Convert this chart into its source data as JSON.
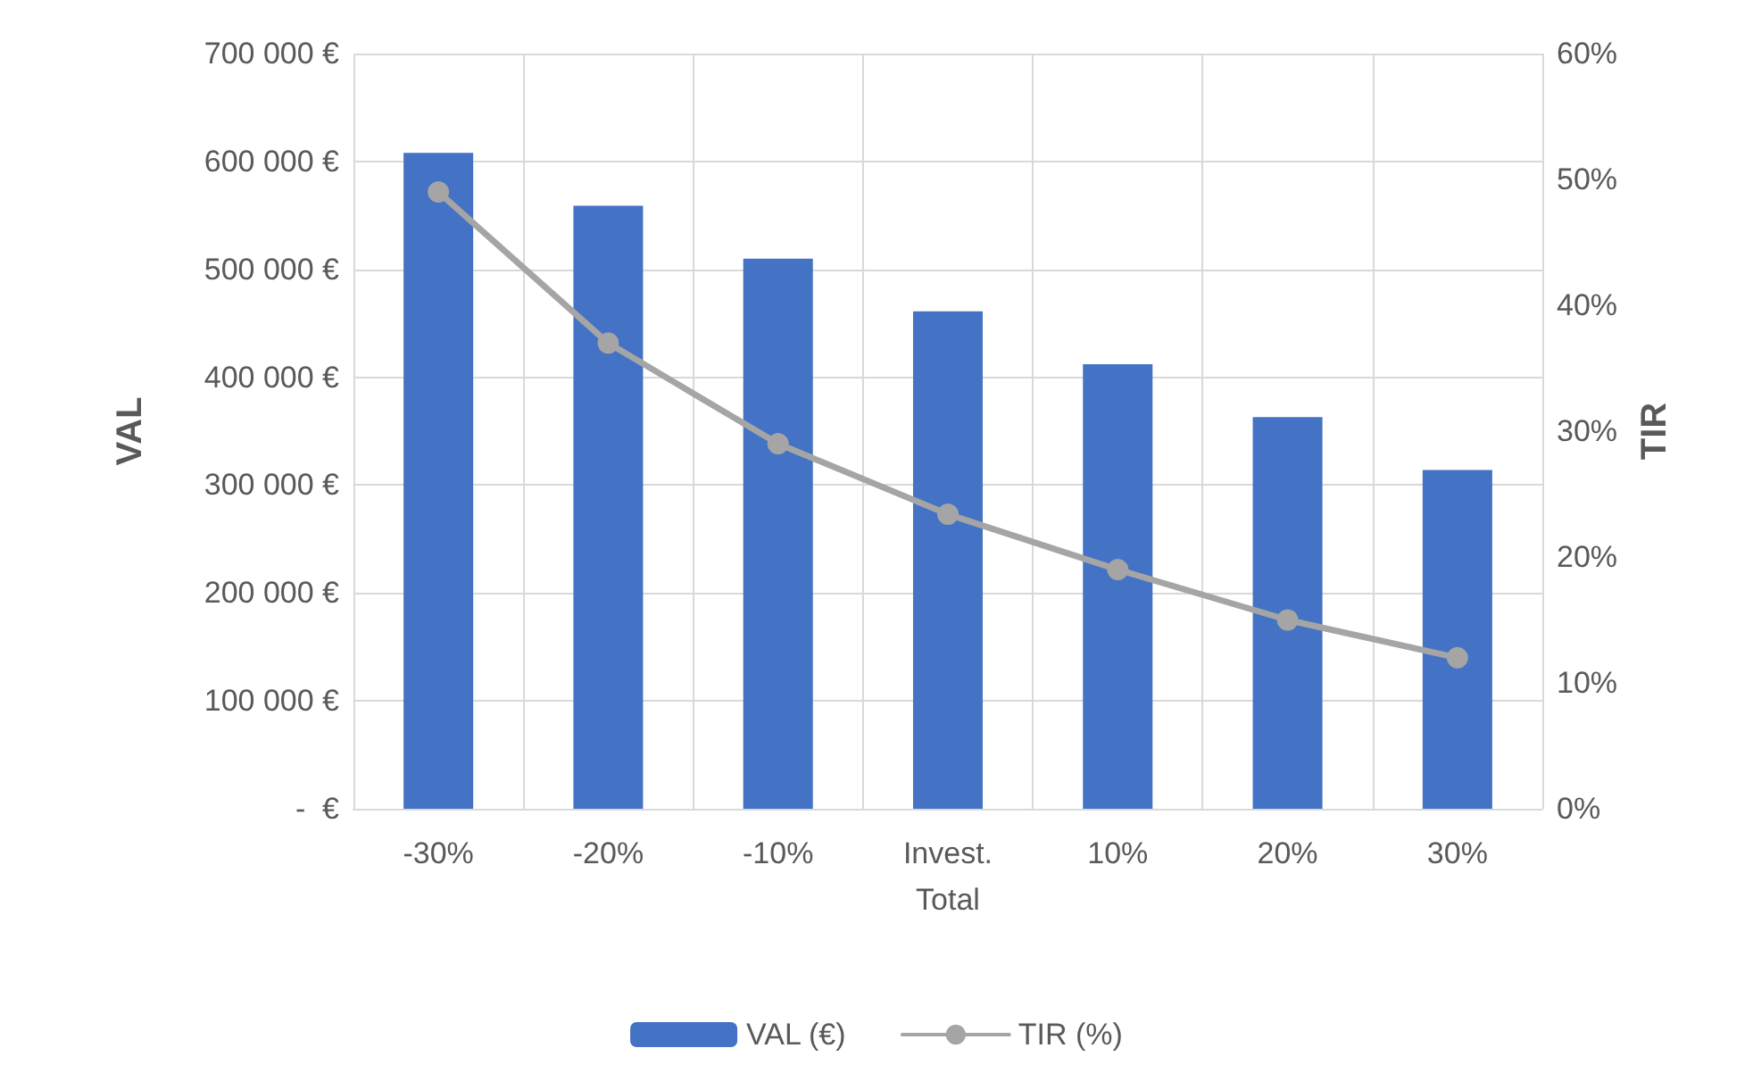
{
  "chart_data": {
    "type": "bar",
    "categories": [
      "-30%",
      "-20%",
      "-10%",
      "Invest.\nTotal",
      "10%",
      "20%",
      "30%"
    ],
    "series": [
      {
        "name": "VAL (€)",
        "color": "#4472c4",
        "values": [
          608000,
          559000,
          510000,
          461000,
          412000,
          363000,
          314000
        ]
      },
      {
        "name": "TIR (%)",
        "type": "line",
        "axis": "y2",
        "color": "#a5a5a5",
        "marker": "circle",
        "values": [
          49,
          37,
          29,
          23.4,
          19,
          15,
          12
        ]
      }
    ],
    "ylabel": "VAL",
    "y2label": "TIR",
    "ylim": [
      0,
      700000
    ],
    "yticks": [
      {
        "value": 0,
        "label": "-  €"
      },
      {
        "value": 100000,
        "label": "100 000 €"
      },
      {
        "value": 200000,
        "label": "200 000 €"
      },
      {
        "value": 300000,
        "label": "300 000 €"
      },
      {
        "value": 400000,
        "label": "400 000 €"
      },
      {
        "value": 500000,
        "label": "500 000 €"
      },
      {
        "value": 600000,
        "label": "600 000 €"
      },
      {
        "value": 700000,
        "label": "700 000 €"
      }
    ],
    "y2lim": [
      0,
      60
    ],
    "y2ticks": [
      {
        "value": 0,
        "label": "0%"
      },
      {
        "value": 10,
        "label": "10%"
      },
      {
        "value": 20,
        "label": "20%"
      },
      {
        "value": 30,
        "label": "30%"
      },
      {
        "value": 40,
        "label": "40%"
      },
      {
        "value": 50,
        "label": "50%"
      },
      {
        "value": 60,
        "label": "60%"
      }
    ],
    "grid": true,
    "legend": "bottom"
  }
}
